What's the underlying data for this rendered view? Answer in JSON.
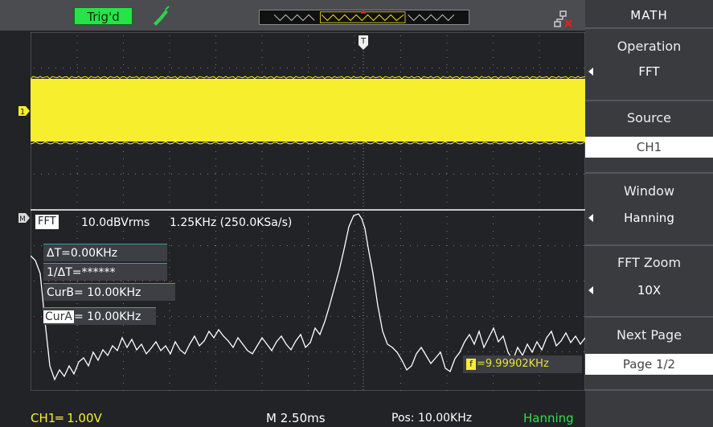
{
  "status": {
    "trigger_label": "Trig'd"
  },
  "fft_header": {
    "tag": "FFT",
    "scale": "10.0dBVrms",
    "span": "1.25KHz (250.0KSa/s)"
  },
  "cursors": {
    "delta_t": "ΔT=0.00KHz",
    "inv_delta_t": "1/ΔT=******",
    "cur_b": "CurB= 10.00KHz",
    "cur_a_tag": "CurA",
    "cur_a_value": "= 10.00KHz"
  },
  "freq_readout": "=9.99902KHz",
  "bottom": {
    "ch1": "CH1═ 1.00V",
    "time": "M 2.50ms",
    "pos": "Pos: 10.00KHz",
    "window": "Hanning"
  },
  "markers": {
    "trigger": "T",
    "channel": "1",
    "math": "M",
    "freq_marker": "f"
  },
  "menu": {
    "title": "MATH",
    "items": [
      {
        "label": "Operation",
        "value": "FFT",
        "active": false
      },
      {
        "label": "Source",
        "value": "CH1",
        "active": true
      },
      {
        "label": "Window",
        "value": "Hanning",
        "active": false
      },
      {
        "label": "FFT Zoom",
        "value": "10X",
        "active": false
      },
      {
        "label": "Next Page",
        "value": "Page 1/2",
        "active": true
      }
    ]
  },
  "colors": {
    "trace_ch1": "#f7ee2e",
    "trigger_green": "#28e24a",
    "fft_trace": "#ffffff",
    "menu_bg": "#3a3b3f",
    "screen_bg": "#222326"
  }
}
